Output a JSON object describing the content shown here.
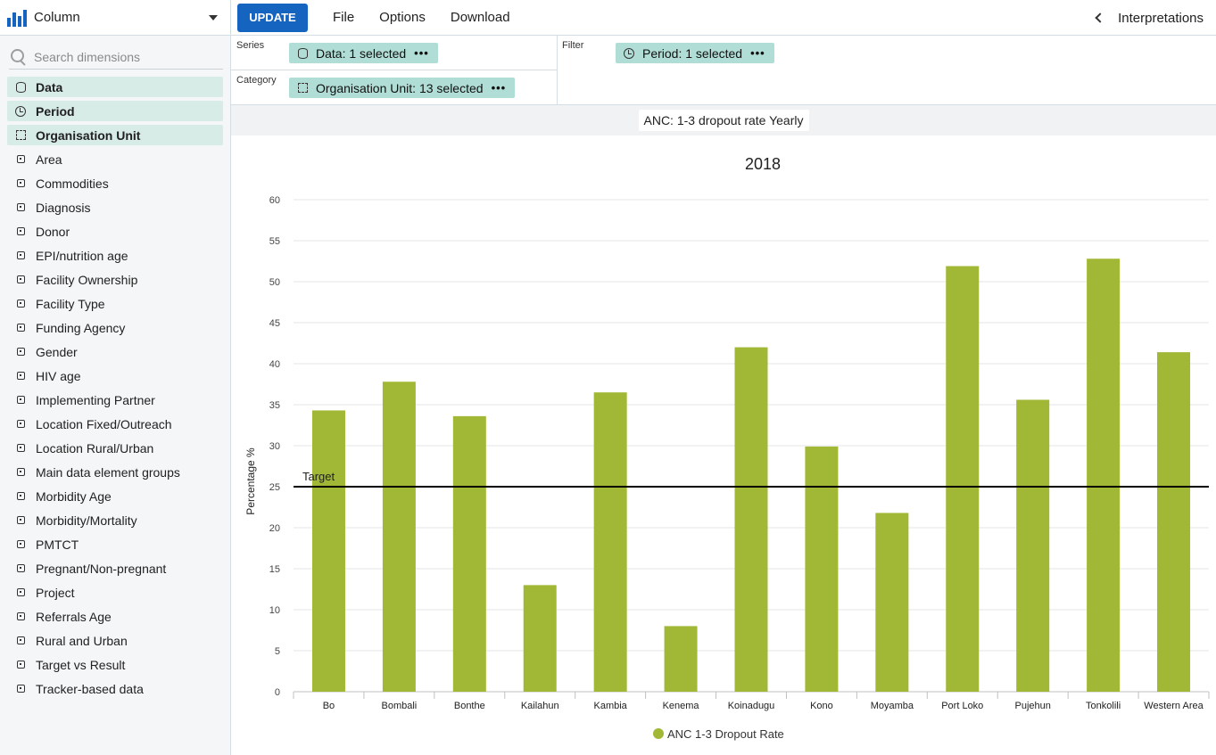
{
  "visualization_type": {
    "label": "Column"
  },
  "search": {
    "placeholder": "Search dimensions"
  },
  "dimensions": [
    {
      "label": "Data",
      "selected": true,
      "icon": "database-icon"
    },
    {
      "label": "Period",
      "selected": true,
      "icon": "clock-icon"
    },
    {
      "label": "Organisation Unit",
      "selected": true,
      "icon": "org-tree-icon"
    },
    {
      "label": "Area",
      "icon": "cube-icon"
    },
    {
      "label": "Commodities",
      "icon": "cube-icon"
    },
    {
      "label": "Diagnosis",
      "icon": "cube-icon"
    },
    {
      "label": "Donor",
      "icon": "cube-icon"
    },
    {
      "label": "EPI/nutrition age",
      "icon": "cube-icon"
    },
    {
      "label": "Facility Ownership",
      "icon": "cube-icon"
    },
    {
      "label": "Facility Type",
      "icon": "cube-icon"
    },
    {
      "label": "Funding Agency",
      "icon": "cube-icon"
    },
    {
      "label": "Gender",
      "icon": "cube-icon"
    },
    {
      "label": "HIV age",
      "icon": "cube-icon"
    },
    {
      "label": "Implementing Partner",
      "icon": "cube-icon"
    },
    {
      "label": "Location Fixed/Outreach",
      "icon": "cube-icon"
    },
    {
      "label": "Location Rural/Urban",
      "icon": "cube-icon"
    },
    {
      "label": "Main data element groups",
      "icon": "cube-icon"
    },
    {
      "label": "Morbidity Age",
      "icon": "cube-icon"
    },
    {
      "label": "Morbidity/Mortality",
      "icon": "cube-icon"
    },
    {
      "label": "PMTCT",
      "icon": "cube-icon"
    },
    {
      "label": "Pregnant/Non-pregnant",
      "icon": "cube-icon"
    },
    {
      "label": "Project",
      "icon": "cube-icon"
    },
    {
      "label": "Referrals Age",
      "icon": "cube-icon"
    },
    {
      "label": "Rural and Urban",
      "icon": "cube-icon"
    },
    {
      "label": "Target vs Result",
      "icon": "cube-icon"
    },
    {
      "label": "Tracker-based data",
      "icon": "cube-icon"
    }
  ],
  "menu": {
    "update": "UPDATE",
    "file": "File",
    "options": "Options",
    "download": "Download",
    "interpretations": "Interpretations"
  },
  "layout": {
    "series_label": "Series",
    "category_label": "Category",
    "filter_label": "Filter",
    "series_chip": "Data: 1 selected",
    "category_chip": "Organisation Unit: 13 selected",
    "filter_chip": "Period: 1 selected",
    "chip_menu": "•••"
  },
  "colors": {
    "accent": "#1565c0",
    "chip": "#b0ddd5",
    "bar": "#a1b836",
    "selected_dim": "#d7ebe7"
  },
  "chart_title_bar": "ANC: 1-3 dropout rate Yearly",
  "chart_data": {
    "type": "bar",
    "title": "2018",
    "ylabel": "Percentage %",
    "xlabel": "",
    "ylim": [
      0,
      60
    ],
    "yticks": [
      0,
      5,
      10,
      15,
      20,
      25,
      30,
      35,
      40,
      45,
      50,
      55,
      60
    ],
    "categories": [
      "Bo",
      "Bombali",
      "Bonthe",
      "Kailahun",
      "Kambia",
      "Kenema",
      "Koinadugu",
      "Kono",
      "Moyamba",
      "Port Loko",
      "Pujehun",
      "Tonkolili",
      "Western Area"
    ],
    "series": [
      {
        "name": "ANC 1-3 Dropout Rate",
        "values": [
          34.3,
          37.8,
          33.6,
          13.0,
          36.5,
          8.0,
          42.0,
          29.9,
          21.8,
          51.9,
          35.6,
          52.8,
          41.4
        ]
      }
    ],
    "target_line": {
      "label": "Target",
      "value": 25
    },
    "grid": true,
    "legend": "bottom-center"
  }
}
